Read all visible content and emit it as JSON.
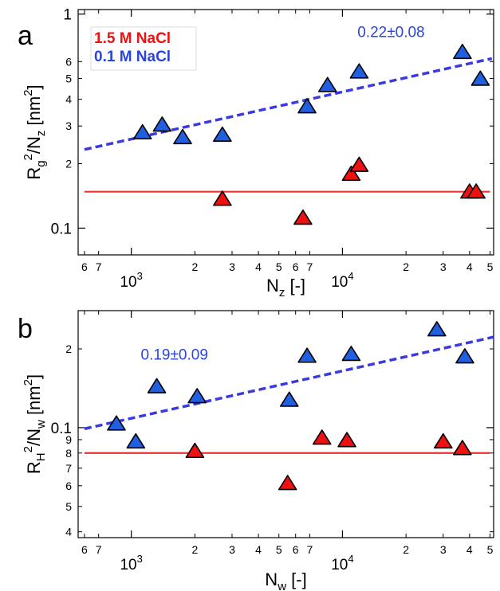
{
  "chart_data": [
    {
      "type": "scatter",
      "panel_label": "a",
      "xlabel": {
        "base": "N",
        "sub": "z",
        "tail": " [-]"
      },
      "ylabel": {
        "r": "R",
        "rsub": "g",
        "sup1": "2",
        "mid": "/N",
        "nsub": "z",
        "open": " [nm",
        "sup2": "2",
        "close": "]"
      },
      "xscale": "log",
      "yscale": "log",
      "xlim": [
        560,
        52000
      ],
      "ylim": [
        0.075,
        1.05
      ],
      "x_major_ticks": [
        {
          "v": 1000,
          "label": "10",
          "sup": "3"
        },
        {
          "v": 10000,
          "label": "10",
          "sup": "4"
        }
      ],
      "x_minor_ticks": [
        {
          "v": 600,
          "label": "6"
        },
        {
          "v": 700,
          "label": "7"
        },
        {
          "v": 2000,
          "label": "2"
        },
        {
          "v": 3000,
          "label": "3"
        },
        {
          "v": 4000,
          "label": "4"
        },
        {
          "v": 5000,
          "label": "5"
        },
        {
          "v": 6000,
          "label": "6"
        },
        {
          "v": 7000,
          "label": "7"
        },
        {
          "v": 20000,
          "label": "2"
        },
        {
          "v": 30000,
          "label": "3"
        },
        {
          "v": 40000,
          "label": "4"
        },
        {
          "v": 50000,
          "label": "5"
        }
      ],
      "y_major_ticks": [
        {
          "v": 0.1,
          "label": "0.1"
        },
        {
          "v": 1,
          "label": "1"
        }
      ],
      "y_minor_ticks": [
        {
          "v": 0.2,
          "label": "2"
        },
        {
          "v": 0.3,
          "label": "3"
        },
        {
          "v": 0.4,
          "label": "4"
        },
        {
          "v": 0.5,
          "label": "5"
        },
        {
          "v": 0.6,
          "label": "6"
        }
      ],
      "legend": {
        "position": "top-left",
        "entries": [
          {
            "label": "1.5 M NaCl",
            "color": "#ee1111"
          },
          {
            "label": "0.1 M NaCl",
            "color": "#2a45dd"
          }
        ]
      },
      "annotations": [
        {
          "text": "0.22±0.08",
          "color": "#2a45dd",
          "at": [
            17000,
            0.78
          ]
        }
      ],
      "series": [
        {
          "name": "1.5 M NaCl",
          "marker_color": "#ee1111",
          "line_color": "#ee3333",
          "points": [
            [
              2700,
              0.136
            ],
            [
              6500,
              0.111
            ],
            [
              11000,
              0.178
            ],
            [
              12000,
              0.196
            ],
            [
              40000,
              0.147
            ],
            [
              43000,
              0.147
            ]
          ],
          "fit": {
            "style": "solid",
            "x": [
              600,
              50000
            ],
            "y": [
              0.148,
              0.148
            ]
          }
        },
        {
          "name": "0.1 M NaCl",
          "marker_color": "#1f5fe0",
          "line_color": "#3a3ae0",
          "points": [
            [
              1130,
              0.278
            ],
            [
              1400,
              0.302
            ],
            [
              1750,
              0.264
            ],
            [
              2700,
              0.271
            ],
            [
              6800,
              0.368
            ],
            [
              8500,
              0.462
            ],
            [
              12000,
              0.535
            ],
            [
              37000,
              0.66
            ],
            [
              45000,
              0.495
            ]
          ],
          "fit": {
            "style": "dashed",
            "x": [
              600,
              51000
            ],
            "y": [
              0.233,
              0.62
            ]
          }
        }
      ]
    },
    {
      "type": "scatter",
      "panel_label": "b",
      "xlabel": {
        "base": "N",
        "sub": "w",
        "tail": " [-]"
      },
      "ylabel": {
        "r": "R",
        "rsub": "H",
        "sup1": "2",
        "mid": "/N",
        "nsub": "w",
        "open": " [nm",
        "sup2": "2",
        "close": "]"
      },
      "xscale": "log",
      "yscale": "log",
      "xlim": [
        560,
        52000
      ],
      "ylim": [
        0.038,
        0.28
      ],
      "x_major_ticks": [
        {
          "v": 1000,
          "label": "10",
          "sup": "3"
        },
        {
          "v": 10000,
          "label": "10",
          "sup": "4"
        }
      ],
      "x_minor_ticks": [
        {
          "v": 600,
          "label": "6"
        },
        {
          "v": 700,
          "label": "7"
        },
        {
          "v": 2000,
          "label": "2"
        },
        {
          "v": 3000,
          "label": "3"
        },
        {
          "v": 4000,
          "label": "4"
        },
        {
          "v": 5000,
          "label": "5"
        },
        {
          "v": 6000,
          "label": "6"
        },
        {
          "v": 7000,
          "label": "7"
        },
        {
          "v": 20000,
          "label": "2"
        },
        {
          "v": 30000,
          "label": "3"
        },
        {
          "v": 40000,
          "label": "4"
        },
        {
          "v": 50000,
          "label": "5"
        }
      ],
      "y_major_ticks": [
        {
          "v": 0.1,
          "label": "0.1"
        }
      ],
      "y_minor_ticks": [
        {
          "v": 0.04,
          "label": "4"
        },
        {
          "v": 0.05,
          "label": "5"
        },
        {
          "v": 0.06,
          "label": "6"
        },
        {
          "v": 0.07,
          "label": "7"
        },
        {
          "v": 0.08,
          "label": "8"
        },
        {
          "v": 0.09,
          "label": "9"
        },
        {
          "v": 0.2,
          "label": "2"
        }
      ],
      "legend": null,
      "annotations": [
        {
          "text": "0.19±0.09",
          "color": "#2a45dd",
          "at": [
            1600,
            0.182
          ]
        }
      ],
      "series": [
        {
          "name": "1.5 M NaCl",
          "marker_color": "#ee1111",
          "line_color": "#ee3333",
          "points": [
            [
              2000,
              0.081
            ],
            [
              5500,
              0.061
            ],
            [
              8000,
              0.091
            ],
            [
              10500,
              0.089
            ],
            [
              30000,
              0.088
            ],
            [
              37000,
              0.083
            ]
          ],
          "fit": {
            "style": "solid",
            "x": [
              600,
              50000
            ],
            "y": [
              0.08,
              0.08
            ]
          }
        },
        {
          "name": "0.1 M NaCl",
          "marker_color": "#1f5fe0",
          "line_color": "#3a3ae0",
          "points": [
            [
              850,
              0.103
            ],
            [
              1050,
              0.088
            ],
            [
              1320,
              0.143
            ],
            [
              2050,
              0.131
            ],
            [
              5600,
              0.127
            ],
            [
              6800,
              0.187
            ],
            [
              11000,
              0.19
            ],
            [
              28000,
              0.236
            ],
            [
              38000,
              0.186
            ]
          ],
          "fit": {
            "style": "dashed",
            "x": [
              600,
              52000
            ],
            "y": [
              0.099,
              0.222
            ]
          }
        }
      ]
    }
  ]
}
